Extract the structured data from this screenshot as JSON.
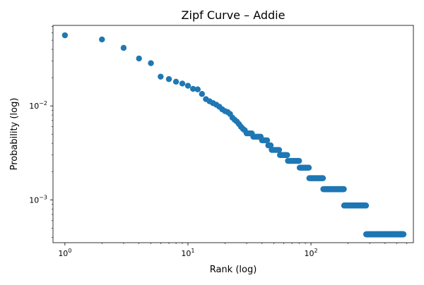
{
  "chart_data": {
    "type": "scatter",
    "title": "Zipf Curve – Addie",
    "xlabel": "Rank (log)",
    "ylabel": "Probability (log)",
    "x_scale": "log",
    "y_scale": "log",
    "xlim": [
      0.8,
      680
    ],
    "ylim": [
      0.00035,
      0.072
    ],
    "grid": false,
    "marker_color": "#1f77b4",
    "x_ticks": [
      {
        "value": 1,
        "base": "10",
        "exp": "0"
      },
      {
        "value": 10,
        "base": "10",
        "exp": "1"
      },
      {
        "value": 100,
        "base": "10",
        "exp": "2"
      }
    ],
    "y_ticks": [
      {
        "value": 0.001,
        "base": "10",
        "exp": "−3"
      },
      {
        "value": 0.01,
        "base": "10",
        "exp": "−2"
      }
    ],
    "ranks_top": [
      [
        1,
        0.0565
      ],
      [
        2,
        0.051
      ],
      [
        3,
        0.0415
      ],
      [
        4,
        0.032
      ],
      [
        5,
        0.0285
      ],
      [
        6,
        0.0205
      ],
      [
        7,
        0.0193
      ],
      [
        8,
        0.0181
      ],
      [
        9,
        0.0173
      ],
      [
        10,
        0.0164
      ],
      [
        11,
        0.0152
      ],
      [
        12,
        0.015
      ],
      [
        13,
        0.0134
      ],
      [
        14,
        0.0118
      ],
      [
        15,
        0.0112
      ],
      [
        16,
        0.0107
      ],
      [
        17,
        0.0103
      ],
      [
        18,
        0.0098
      ],
      [
        19,
        0.0092
      ],
      [
        20,
        0.0088
      ],
      [
        21,
        0.0086
      ],
      [
        22,
        0.0082
      ],
      [
        23,
        0.0075
      ],
      [
        24,
        0.0071
      ],
      [
        25,
        0.0068
      ],
      [
        26,
        0.0064
      ],
      [
        27,
        0.006
      ],
      [
        28,
        0.0057
      ],
      [
        29,
        0.0055
      ]
    ],
    "plateaus": [
      {
        "y": 0.0051,
        "from": 30,
        "to": 33
      },
      {
        "y": 0.0047,
        "from": 34,
        "to": 39
      },
      {
        "y": 0.0043,
        "from": 40,
        "to": 44
      },
      {
        "y": 0.0038,
        "from": 45,
        "to": 47
      },
      {
        "y": 0.0034,
        "from": 48,
        "to": 55
      },
      {
        "y": 0.003,
        "from": 56,
        "to": 64
      },
      {
        "y": 0.0026,
        "from": 65,
        "to": 80
      },
      {
        "y": 0.0022,
        "from": 81,
        "to": 96
      },
      {
        "y": 0.0017,
        "from": 97,
        "to": 125
      },
      {
        "y": 0.0013,
        "from": 126,
        "to": 185
      },
      {
        "y": 0.00087,
        "from": 186,
        "to": 280
      },
      {
        "y": 0.00043,
        "from": 281,
        "to": 565
      }
    ]
  }
}
